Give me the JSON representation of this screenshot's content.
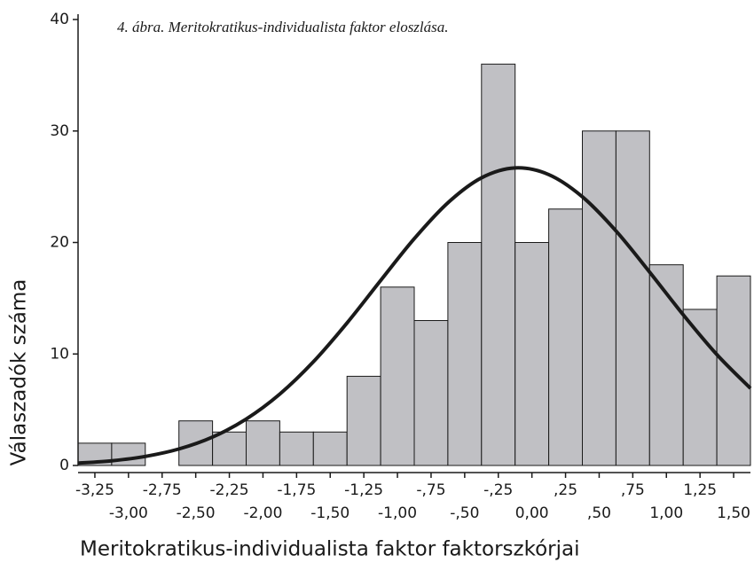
{
  "chart_data": {
    "type": "histogram",
    "title": "4. ábra. Meritokratikus-individualista faktor eloszlása.",
    "xlabel": "Meritokratikus-individualista faktor faktorszkórjai",
    "ylabel": "Válaszadók száma",
    "bins": [
      -3.375,
      -3.125,
      -2.875,
      -2.625,
      -2.375,
      -2.125,
      -1.875,
      -1.625,
      -1.375,
      -1.125,
      -0.875,
      -0.625,
      -0.375,
      -0.125,
      0.125,
      0.375,
      0.625,
      0.875,
      1.125,
      1.375,
      1.625
    ],
    "counts": [
      2,
      2,
      0,
      4,
      3,
      4,
      3,
      3,
      8,
      16,
      13,
      20,
      36,
      20,
      23,
      30,
      30,
      18,
      14,
      17
    ],
    "color": "#c0c0c4",
    "fit_curve": {
      "color": "#1a1a1a",
      "x": [
        -3.375,
        -3.125,
        -2.875,
        -2.625,
        -2.375,
        -2.125,
        -1.875,
        -1.625,
        -1.375,
        -1.125,
        -0.875,
        -0.625,
        -0.375,
        -0.125,
        0.125,
        0.375,
        0.625,
        0.875,
        1.125,
        1.375,
        1.625
      ],
      "y": [
        0.21,
        0.42,
        0.81,
        1.48,
        2.55,
        4.16,
        6.4,
        9.3,
        12.78,
        16.59,
        20.34,
        23.56,
        25.8,
        26.69,
        26.09,
        24.1,
        21.04,
        17.35,
        13.52,
        9.95,
        6.92
      ]
    },
    "xlim": [
      -3.375,
      1.625
    ],
    "ylim": [
      0,
      40
    ],
    "yticks": [
      0,
      10,
      20,
      30,
      40
    ],
    "xticks": [
      {
        "value": -3.25,
        "label": "-3,25"
      },
      {
        "value": -3.0,
        "label": "-3,00"
      },
      {
        "value": -2.75,
        "label": "-2,75"
      },
      {
        "value": -2.5,
        "label": "-2,50"
      },
      {
        "value": -2.25,
        "label": "-2,25"
      },
      {
        "value": -2.0,
        "label": "-2,00"
      },
      {
        "value": -1.75,
        "label": "-1,75"
      },
      {
        "value": -1.5,
        "label": "-1,50"
      },
      {
        "value": -1.25,
        "label": "-1,25"
      },
      {
        "value": -1.0,
        "label": "-1,00"
      },
      {
        "value": -0.75,
        "label": "-,75"
      },
      {
        "value": -0.5,
        "label": "-,50"
      },
      {
        "value": -0.25,
        "label": "-,25"
      },
      {
        "value": 0.0,
        "label": "0,00"
      },
      {
        "value": 0.25,
        "label": ",25"
      },
      {
        "value": 0.5,
        "label": ",50"
      },
      {
        "value": 0.75,
        "label": ",75"
      },
      {
        "value": 1.0,
        "label": "1,00"
      },
      {
        "value": 1.25,
        "label": "1,25"
      },
      {
        "value": 1.5,
        "label": "1,50"
      }
    ],
    "grid": false
  }
}
